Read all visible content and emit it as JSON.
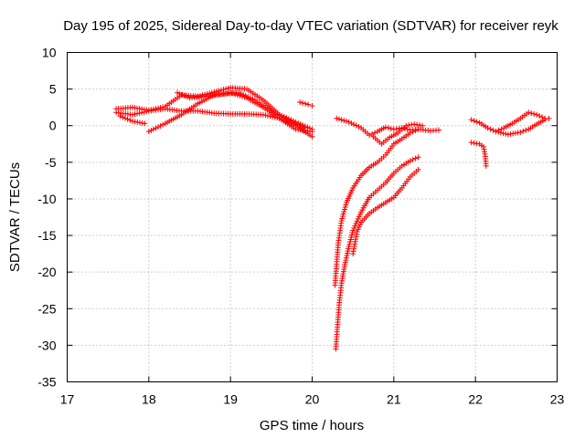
{
  "chart_data": {
    "type": "scatter",
    "title": "Day 195 of 2025, Sidereal Day-to-day VTEC variation (SDTVAR) for receiver reyk",
    "xlabel": "GPS time / hours",
    "ylabel": "SDTVAR / TECUs",
    "xlim": [
      17,
      23
    ],
    "ylim": [
      -35,
      10
    ],
    "xticks": [
      17,
      18,
      19,
      20,
      21,
      22,
      23
    ],
    "yticks": [
      10,
      5,
      0,
      -5,
      -10,
      -15,
      -20,
      -25,
      -30,
      -35
    ],
    "grid": true,
    "marker": "+",
    "color": "#ff0000",
    "series": [
      {
        "name": "track-1",
        "points": [
          [
            17.6,
            2.3
          ],
          [
            17.8,
            2.5
          ],
          [
            18.0,
            2.1
          ],
          [
            18.2,
            2.6
          ],
          [
            18.4,
            4.2
          ],
          [
            18.6,
            4.0
          ],
          [
            18.8,
            4.6
          ],
          [
            19.0,
            5.2
          ],
          [
            19.2,
            5.0
          ],
          [
            19.4,
            3.5
          ],
          [
            19.6,
            1.5
          ],
          [
            19.8,
            0.5
          ],
          [
            20.0,
            -0.5
          ]
        ]
      },
      {
        "name": "track-2",
        "points": [
          [
            17.6,
            1.8
          ],
          [
            17.8,
            1.5
          ],
          [
            18.0,
            2.0
          ],
          [
            18.2,
            2.3
          ],
          [
            18.4,
            2.0
          ],
          [
            18.6,
            2.0
          ],
          [
            18.8,
            1.7
          ],
          [
            19.0,
            1.6
          ],
          [
            19.2,
            1.6
          ],
          [
            19.4,
            1.5
          ],
          [
            19.6,
            1.0
          ],
          [
            19.8,
            0.0
          ],
          [
            20.0,
            -1.5
          ]
        ]
      },
      {
        "name": "track-3",
        "points": [
          [
            17.65,
            1.3
          ],
          [
            17.8,
            0.6
          ],
          [
            17.95,
            0.3
          ]
        ]
      },
      {
        "name": "track-4",
        "points": [
          [
            18.0,
            -0.8
          ],
          [
            18.2,
            0.3
          ],
          [
            18.4,
            1.5
          ],
          [
            18.6,
            3.0
          ],
          [
            18.8,
            4.2
          ],
          [
            19.0,
            4.5
          ],
          [
            19.2,
            3.8
          ],
          [
            19.4,
            2.5
          ],
          [
            19.6,
            1.0
          ],
          [
            19.8,
            -0.5
          ],
          [
            20.0,
            -0.8
          ]
        ]
      },
      {
        "name": "track-5",
        "points": [
          [
            18.35,
            4.5
          ],
          [
            18.5,
            3.8
          ],
          [
            18.7,
            4.0
          ],
          [
            18.9,
            4.3
          ],
          [
            19.1,
            4.5
          ],
          [
            19.3,
            3.5
          ],
          [
            19.5,
            2.0
          ],
          [
            19.7,
            0.8
          ],
          [
            19.9,
            -0.3
          ]
        ]
      },
      {
        "name": "track-6",
        "points": [
          [
            19.85,
            3.2
          ],
          [
            19.95,
            2.9
          ],
          [
            20.0,
            2.7
          ]
        ]
      },
      {
        "name": "track-7",
        "points": [
          [
            20.3,
            1.0
          ],
          [
            20.45,
            0.5
          ],
          [
            20.6,
            -0.3
          ],
          [
            20.7,
            -1.3
          ],
          [
            20.8,
            -0.8
          ],
          [
            20.9,
            -0.2
          ],
          [
            21.0,
            -0.5
          ],
          [
            21.1,
            -0.3
          ],
          [
            21.2,
            -0.6
          ],
          [
            21.3,
            -0.5
          ],
          [
            21.45,
            -0.7
          ],
          [
            21.55,
            -0.6
          ]
        ]
      },
      {
        "name": "track-8",
        "points": [
          [
            20.28,
            -21.8
          ],
          [
            20.32,
            -16.0
          ],
          [
            20.36,
            -13.0
          ],
          [
            20.42,
            -10.5
          ],
          [
            20.5,
            -8.5
          ],
          [
            20.6,
            -6.8
          ],
          [
            20.7,
            -5.7
          ],
          [
            20.8,
            -5.0
          ],
          [
            20.9,
            -4.0
          ],
          [
            21.0,
            -2.5
          ],
          [
            21.1,
            -1.8
          ],
          [
            21.2,
            -1.0
          ],
          [
            21.3,
            -0.5
          ]
        ]
      },
      {
        "name": "track-9",
        "points": [
          [
            20.29,
            -30.5
          ],
          [
            20.31,
            -27.5
          ],
          [
            20.33,
            -24.5
          ],
          [
            20.36,
            -21.5
          ],
          [
            20.4,
            -19.0
          ],
          [
            20.45,
            -16.5
          ],
          [
            20.5,
            -14.3
          ],
          [
            20.6,
            -11.8
          ],
          [
            20.7,
            -9.8
          ],
          [
            20.8,
            -8.8
          ],
          [
            20.9,
            -7.8
          ],
          [
            21.0,
            -6.5
          ],
          [
            21.1,
            -5.5
          ],
          [
            21.2,
            -4.8
          ],
          [
            21.3,
            -4.3
          ]
        ]
      },
      {
        "name": "track-10",
        "points": [
          [
            20.5,
            -17.5
          ],
          [
            20.55,
            -14.5
          ],
          [
            20.6,
            -13.2
          ],
          [
            20.7,
            -12.0
          ],
          [
            20.8,
            -11.2
          ],
          [
            20.9,
            -10.5
          ],
          [
            21.0,
            -9.8
          ],
          [
            21.1,
            -8.5
          ],
          [
            21.2,
            -7.0
          ],
          [
            21.3,
            -6.0
          ]
        ]
      },
      {
        "name": "track-11",
        "points": [
          [
            20.75,
            -1.5
          ],
          [
            20.85,
            -2.5
          ],
          [
            20.95,
            -1.6
          ],
          [
            21.05,
            -1.0
          ],
          [
            21.15,
            0.0
          ],
          [
            21.25,
            0.2
          ],
          [
            21.35,
            0.0
          ]
        ]
      },
      {
        "name": "track-12",
        "points": [
          [
            21.95,
            0.8
          ],
          [
            22.05,
            0.4
          ],
          [
            22.15,
            -0.3
          ],
          [
            22.25,
            -0.8
          ],
          [
            22.4,
            -1.2
          ],
          [
            22.55,
            -0.9
          ],
          [
            22.65,
            -0.5
          ],
          [
            22.75,
            0.2
          ],
          [
            22.85,
            0.8
          ],
          [
            22.9,
            1.0
          ]
        ]
      },
      {
        "name": "track-13",
        "points": [
          [
            22.25,
            -0.8
          ],
          [
            22.35,
            -0.3
          ],
          [
            22.45,
            0.3
          ],
          [
            22.55,
            1.0
          ],
          [
            22.65,
            1.8
          ],
          [
            22.75,
            1.5
          ],
          [
            22.85,
            1.0
          ]
        ]
      },
      {
        "name": "track-14",
        "points": [
          [
            21.95,
            -2.3
          ],
          [
            22.05,
            -2.5
          ],
          [
            22.1,
            -2.9
          ],
          [
            22.12,
            -4.2
          ],
          [
            22.13,
            -5.5
          ]
        ]
      }
    ]
  }
}
